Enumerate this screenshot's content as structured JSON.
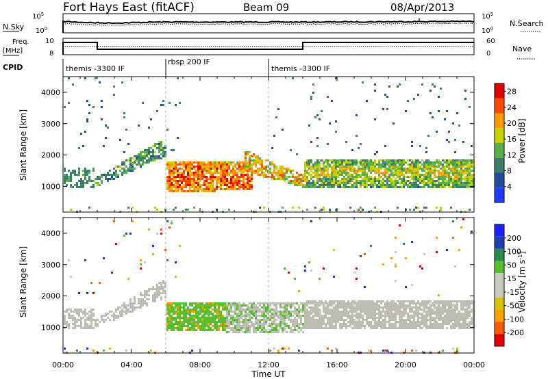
{
  "header": {
    "title": "Fort Hays East (fitACF)",
    "beam": "Beam 09",
    "date": "08/Apr/2013"
  },
  "nsky_panel": {
    "left_label": "N.Sky",
    "right_label": "N.Search",
    "left_ticks": [
      "10^5",
      "10^0"
    ],
    "right_ticks": [
      "10^5",
      "10^0"
    ]
  },
  "freq_panel": {
    "left_label_1": "Freq.",
    "left_label_2": "[MHz]",
    "left_ticks": [
      "10",
      "8"
    ],
    "right_label": "Nave",
    "right_ticks": [
      "60",
      "0"
    ]
  },
  "cpid": {
    "label": "CPID",
    "segments": [
      {
        "start_h": 0,
        "end_h": 6,
        "label": "themis -3300 IF"
      },
      {
        "start_h": 6,
        "end_h": 12,
        "label": "rbsp 200 IF"
      },
      {
        "start_h": 12,
        "end_h": 24,
        "label": "themis -3300 IF"
      }
    ]
  },
  "colors": {
    "power_scale": [
      "#1f3cff",
      "#1f4f9c",
      "#3b7f6a",
      "#58b04a",
      "#c9d200",
      "#ff9a00",
      "#ff4a00",
      "#e00000"
    ],
    "velocity_scale": [
      "#e00000",
      "#ff5a00",
      "#ffa000",
      "#d9c200",
      "#c8c8c0",
      "#c8c8c0",
      "#58c030",
      "#2a8a50",
      "#2040b0",
      "#2020ff"
    ],
    "ground_scatter": "#bdbdb5"
  },
  "chart_data": [
    {
      "type": "heatmap",
      "title": "",
      "xlabel": "Time UT",
      "ylabel": "Slant Range [km]",
      "xlim": [
        0,
        24
      ],
      "ylim": [
        180,
        4500
      ],
      "x_ticks": [
        "00:00",
        "04:00",
        "08:00",
        "12:00",
        "16:00",
        "20:00",
        "00:00"
      ],
      "y_ticks": [
        "1000",
        "2000",
        "3000",
        "4000"
      ],
      "colorbar": {
        "label": "Power [dB]",
        "ticks": [
          "4",
          "8",
          "12",
          "16",
          "20",
          "24",
          "28"
        ],
        "range": [
          0,
          30
        ]
      },
      "features": [
        {
          "name": "band_A",
          "from_h": 0,
          "to_h": 1.8,
          "range_km": [
            1000,
            1600
          ],
          "value_db": 8
        },
        {
          "name": "band_B",
          "from_h": 1.8,
          "to_h": 6,
          "range_km_start": [
            900,
            1300
          ],
          "range_km_end": [
            1900,
            2700
          ],
          "value_db": 10
        },
        {
          "name": "band_C",
          "from_h": 6,
          "to_h": 11,
          "range_km": [
            800,
            1800
          ],
          "value_db": 24
        },
        {
          "name": "band_D",
          "from_h": 10.5,
          "to_h": 14,
          "range_km_start": [
            1600,
            2200
          ],
          "range_km_end": [
            800,
            1400
          ],
          "value_db": 20
        },
        {
          "name": "band_E",
          "from_h": 14,
          "to_h": 24,
          "range_km": [
            1000,
            1900
          ],
          "value_db": 18
        }
      ]
    },
    {
      "type": "heatmap",
      "title": "",
      "xlabel": "Time UT",
      "ylabel": "Slant Range [km]",
      "xlim": [
        0,
        24
      ],
      "ylim": [
        180,
        4500
      ],
      "x_ticks": [
        "00:00",
        "04:00",
        "08:00",
        "12:00",
        "16:00",
        "20:00",
        "00:00"
      ],
      "y_ticks": [
        "1000",
        "2000",
        "3000",
        "4000"
      ],
      "colorbar": {
        "label": "Velocity [m s^-1]",
        "ticks": [
          "200",
          "100",
          "50",
          "15",
          "-15",
          "-50",
          "-100",
          "-200"
        ],
        "range": [
          -250,
          250
        ]
      },
      "features": [
        {
          "name": "ground_scatter_A",
          "from_h": 0,
          "to_h": 6,
          "value": 0
        },
        {
          "name": "ionospheric_green",
          "from_h": 6,
          "to_h": 9.5,
          "range_km": [
            1000,
            1800
          ],
          "value": 60
        },
        {
          "name": "ground_scatter_B",
          "from_h": 9.5,
          "to_h": 24,
          "range_km": [
            1000,
            1900
          ],
          "value": 0
        }
      ]
    }
  ]
}
